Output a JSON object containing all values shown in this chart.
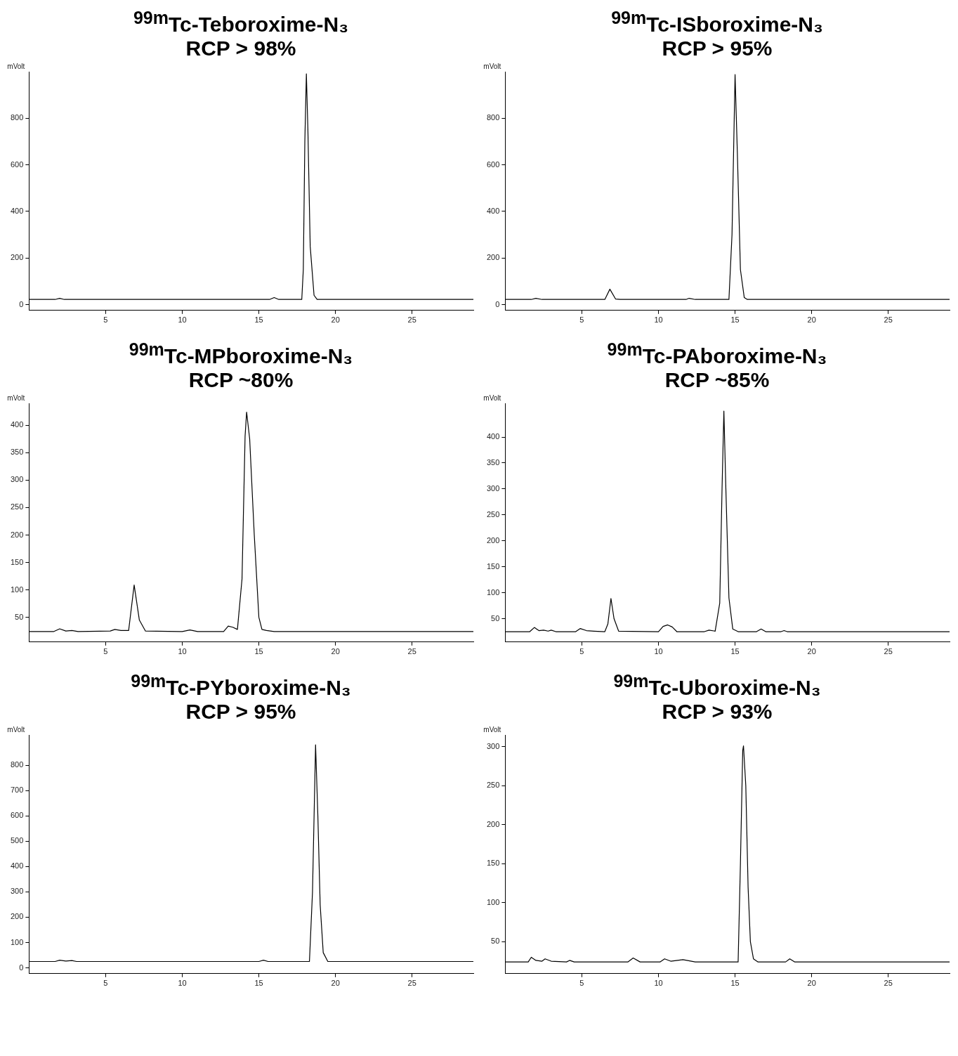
{
  "chart_data": [
    {
      "type": "line",
      "title": "$^{99m}$Tc-Teboroxime-N₃",
      "subtitle": "RCP > 98%",
      "ylabel": "mVolt",
      "color": "#000000",
      "marker": "none",
      "xlim": [
        0,
        29
      ],
      "xticks": [
        5,
        10,
        15,
        20,
        25
      ],
      "ylim": [
        -25,
        1000
      ],
      "yticks": [
        0,
        200,
        400,
        600,
        800
      ],
      "x": [
        0,
        1.7,
        2.0,
        2.3,
        15.7,
        16.0,
        16.3,
        17.8,
        17.9,
        18.0,
        18.1,
        18.2,
        18.35,
        18.6,
        18.8,
        29
      ],
      "values": [
        22,
        22,
        27,
        22,
        22,
        30,
        22,
        22,
        150,
        700,
        991,
        750,
        250,
        40,
        22,
        22
      ]
    },
    {
      "type": "line",
      "title": "$^{99m}$Tc-ISboroxime-N₃",
      "subtitle": "RCP > 95%",
      "ylabel": "mVolt",
      "color": "#000000",
      "marker": "none",
      "xlim": [
        0,
        29
      ],
      "xticks": [
        5,
        10,
        15,
        20,
        25
      ],
      "ylim": [
        -25,
        1000
      ],
      "yticks": [
        0,
        200,
        400,
        600,
        800
      ],
      "x": [
        0,
        1.7,
        2.0,
        2.4,
        6.5,
        6.83,
        7.2,
        7.5,
        11.8,
        12.0,
        12.4,
        14.6,
        14.8,
        15.0,
        15.15,
        15.35,
        15.6,
        15.8,
        29
      ],
      "values": [
        22,
        22,
        27,
        22,
        22,
        66,
        24,
        22,
        22,
        27,
        22,
        22,
        300,
        988,
        650,
        150,
        30,
        22,
        22
      ]
    },
    {
      "type": "line",
      "title": "$^{99m}$Tc-MPboroxime-N₃",
      "subtitle": "RCP ~80%",
      "ylabel": "mVolt",
      "color": "#000000",
      "marker": "none",
      "xlim": [
        0,
        29
      ],
      "xticks": [
        5,
        10,
        15,
        20,
        25
      ],
      "ylim": [
        5,
        440
      ],
      "yticks": [
        50,
        100,
        150,
        200,
        250,
        300,
        350,
        400
      ],
      "x": [
        0,
        1.6,
        2.0,
        2.4,
        2.8,
        3.2,
        5.3,
        5.6,
        6.0,
        6.5,
        6.86,
        7.2,
        7.6,
        10.0,
        10.5,
        11.0,
        12.7,
        13.0,
        13.3,
        13.6,
        13.9,
        14.1,
        14.2,
        14.4,
        14.7,
        15.0,
        15.2,
        15.5,
        16.0,
        29
      ],
      "values": [
        24,
        24,
        29,
        25,
        26,
        24,
        25,
        28,
        26,
        26,
        109,
        45,
        25,
        24,
        27,
        24,
        24,
        34,
        32,
        28,
        120,
        380,
        424,
        375,
        200,
        50,
        28,
        26,
        24,
        24
      ]
    },
    {
      "type": "line",
      "title": "$^{99m}$Tc-PAboroxime-N₃",
      "subtitle": "RCP ~85%",
      "ylabel": "mVolt",
      "color": "#000000",
      "marker": "none",
      "xlim": [
        0,
        29
      ],
      "xticks": [
        5,
        10,
        15,
        20,
        25
      ],
      "ylim": [
        5,
        465
      ],
      "yticks": [
        50,
        100,
        150,
        200,
        250,
        300,
        350,
        400
      ],
      "x": [
        0,
        1.6,
        1.9,
        2.2,
        2.5,
        2.8,
        3.0,
        3.3,
        4.6,
        4.9,
        5.3,
        5.8,
        6.5,
        6.7,
        6.9,
        7.1,
        7.4,
        10.0,
        10.3,
        10.6,
        10.9,
        11.2,
        13.0,
        13.3,
        13.7,
        14.0,
        14.15,
        14.27,
        14.4,
        14.6,
        14.85,
        15.2,
        16.4,
        16.7,
        17.0,
        18.0,
        18.2,
        18.4,
        29
      ],
      "values": [
        25,
        25,
        33,
        27,
        28,
        26,
        28,
        25,
        25,
        31,
        27,
        26,
        25,
        40,
        89,
        50,
        26,
        25,
        35,
        38,
        34,
        25,
        25,
        28,
        26,
        80,
        300,
        450,
        300,
        90,
        30,
        25,
        25,
        30,
        25,
        25,
        27,
        25,
        25
      ]
    },
    {
      "type": "line",
      "title": "$^{99m}$Tc-PYboroxime-N₃",
      "subtitle": "RCP > 95%",
      "ylabel": "mVolt",
      "color": "#000000",
      "marker": "none",
      "xlim": [
        0,
        29
      ],
      "xticks": [
        5,
        10,
        15,
        20,
        25
      ],
      "ylim": [
        -23,
        920
      ],
      "yticks": [
        0,
        100,
        200,
        300,
        400,
        500,
        600,
        700,
        800
      ],
      "x": [
        0,
        1.7,
        2.0,
        2.4,
        2.8,
        3.1,
        15.0,
        15.3,
        15.6,
        18.3,
        18.5,
        18.7,
        18.85,
        19.0,
        19.2,
        19.5,
        29
      ],
      "values": [
        25,
        25,
        30,
        27,
        29,
        25,
        25,
        30,
        25,
        25,
        300,
        881,
        600,
        250,
        60,
        25,
        25
      ]
    },
    {
      "type": "line",
      "title": "$^{99m}$Tc-Uboroxime-N₃",
      "subtitle": "RCP > 93%",
      "ylabel": "mVolt",
      "color": "#000000",
      "marker": "none",
      "xlim": [
        0,
        29
      ],
      "xticks": [
        5,
        10,
        15,
        20,
        25
      ],
      "ylim": [
        9,
        315
      ],
      "yticks": [
        50,
        100,
        150,
        200,
        250,
        300
      ],
      "x": [
        0,
        1.5,
        1.7,
        2.0,
        2.4,
        2.6,
        3.0,
        4.0,
        4.2,
        4.5,
        8.0,
        8.35,
        8.8,
        10.1,
        10.4,
        10.8,
        11.6,
        12.4,
        15.2,
        15.35,
        15.5,
        15.55,
        15.7,
        15.85,
        16.0,
        16.2,
        16.5,
        18.3,
        18.57,
        18.9,
        29
      ],
      "values": [
        24,
        24,
        30,
        26,
        25,
        28,
        25,
        24,
        26,
        24,
        24,
        29,
        24,
        24,
        28,
        25,
        27,
        24,
        24,
        150,
        295,
        301,
        250,
        120,
        50,
        28,
        24,
        24,
        28,
        24,
        24
      ]
    }
  ]
}
